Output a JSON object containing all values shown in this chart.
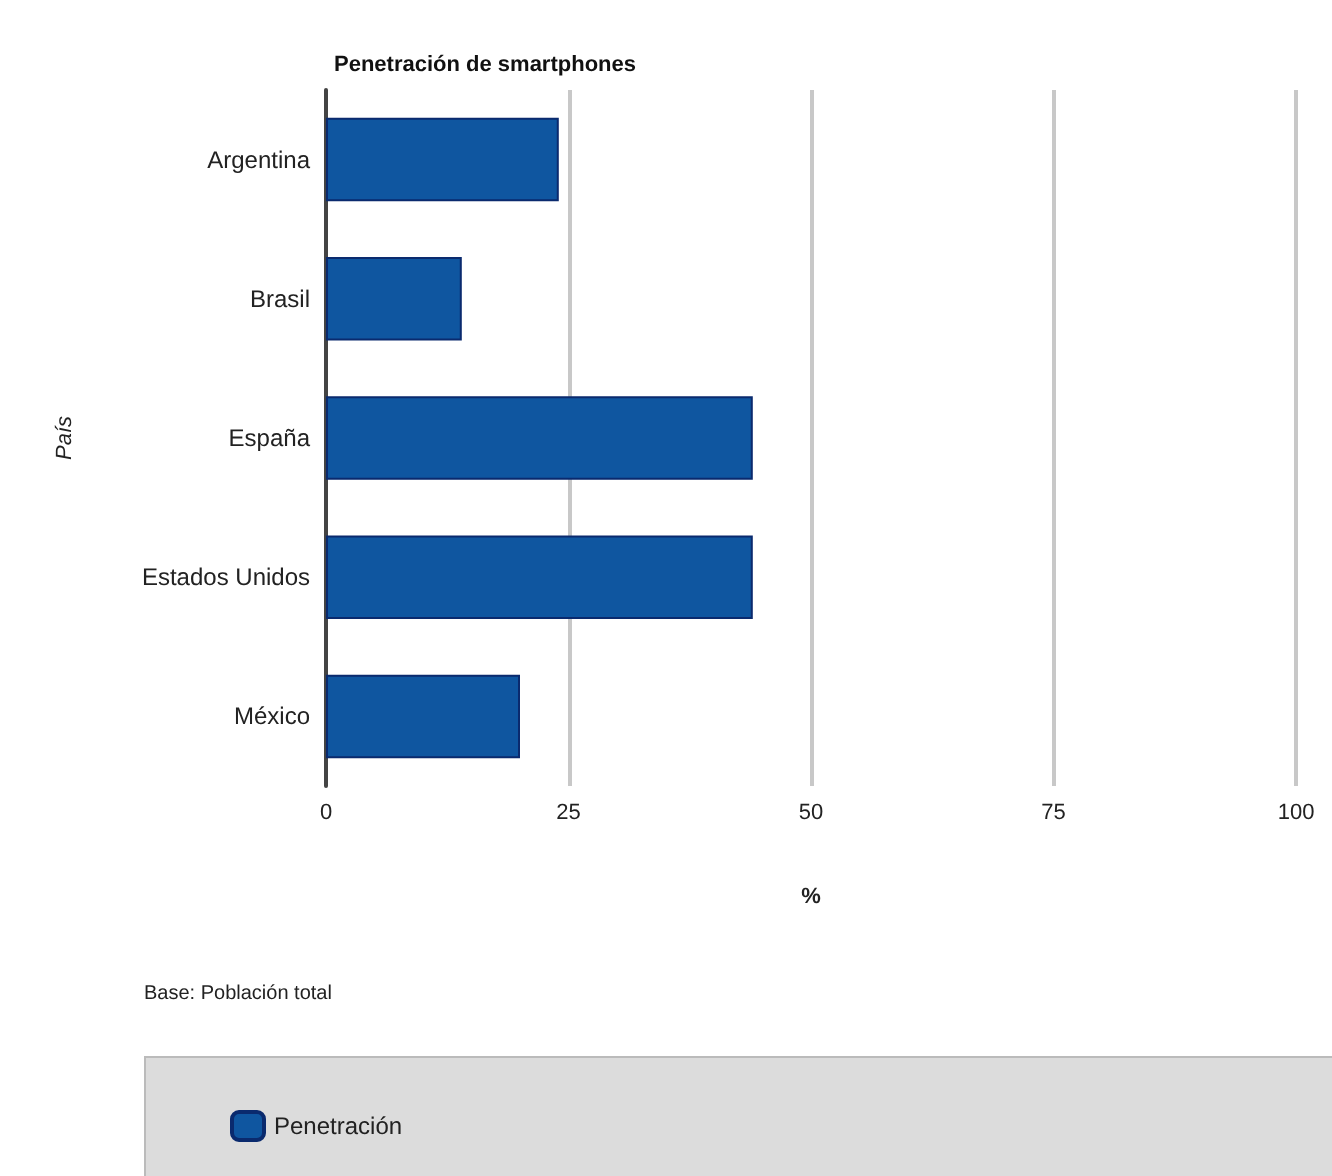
{
  "chart_data": {
    "type": "bar",
    "orientation": "horizontal",
    "title": "Penetración de smartphones",
    "xlabel": "%",
    "ylabel": "País",
    "categories": [
      "Argentina",
      "Brasil",
      "España",
      "Estados Unidos",
      "México"
    ],
    "series": [
      {
        "name": "Penetración",
        "color": "#0f56a0",
        "values": [
          24,
          14,
          44,
          44,
          20
        ]
      }
    ],
    "xlim": [
      0,
      100
    ],
    "xticks": [
      0,
      25,
      50,
      75,
      100
    ],
    "grid": "x",
    "legend": "bottom",
    "annotations": [
      "Base: Población total"
    ]
  }
}
